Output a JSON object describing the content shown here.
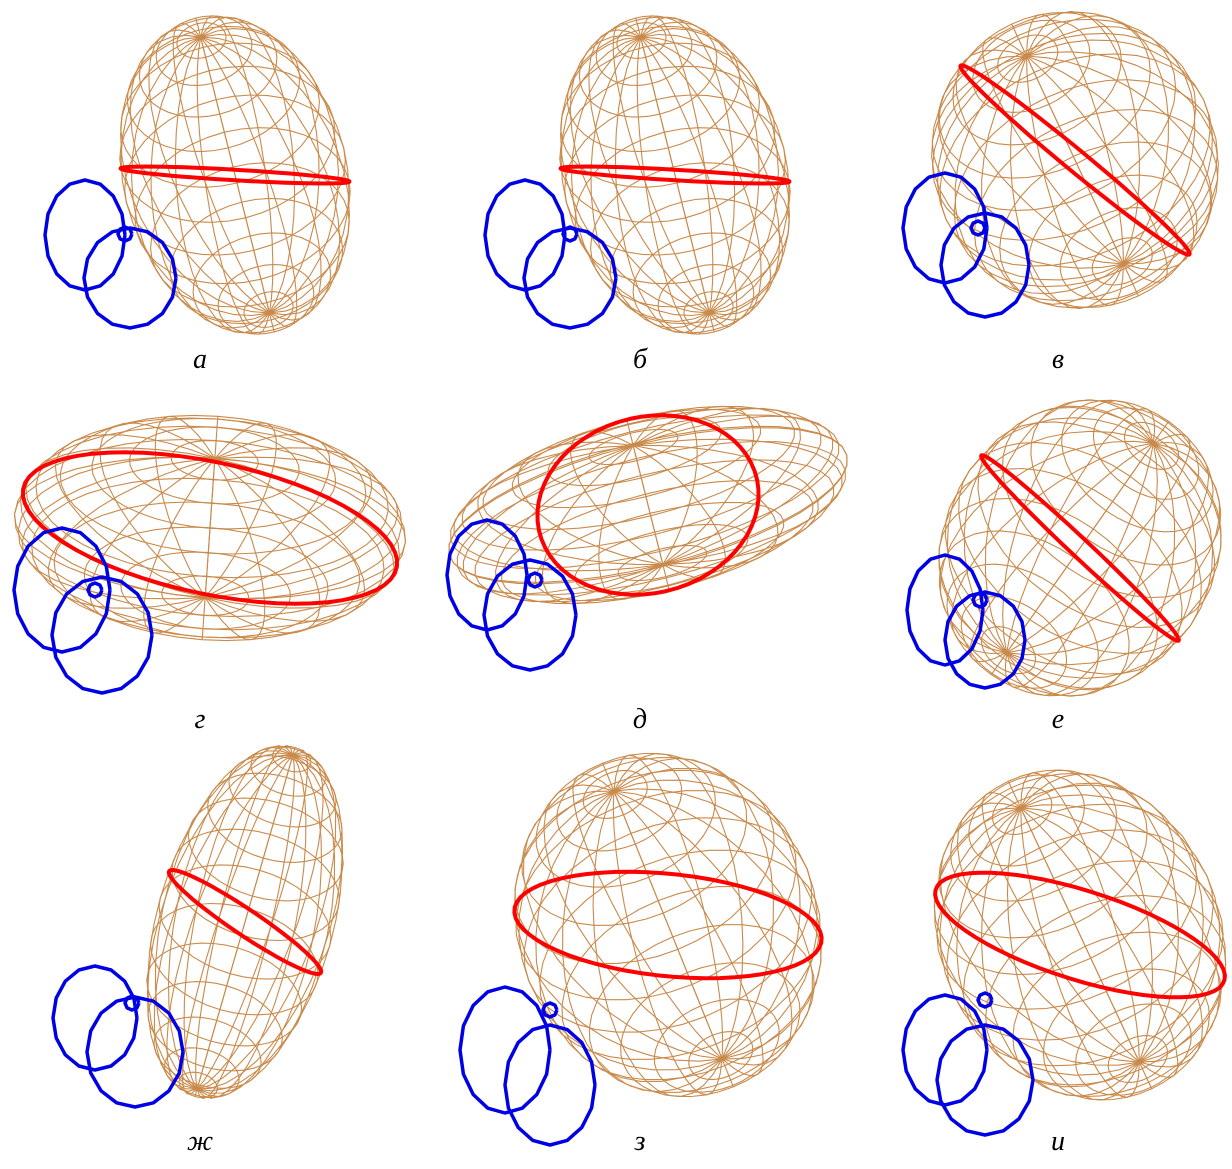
{
  "panels": [
    {
      "label": "а"
    },
    {
      "label": "б"
    },
    {
      "label": "в"
    },
    {
      "label": "г"
    },
    {
      "label": "д"
    },
    {
      "label": "е"
    },
    {
      "label": "ж"
    },
    {
      "label": "з"
    },
    {
      "label": "и"
    }
  ]
}
